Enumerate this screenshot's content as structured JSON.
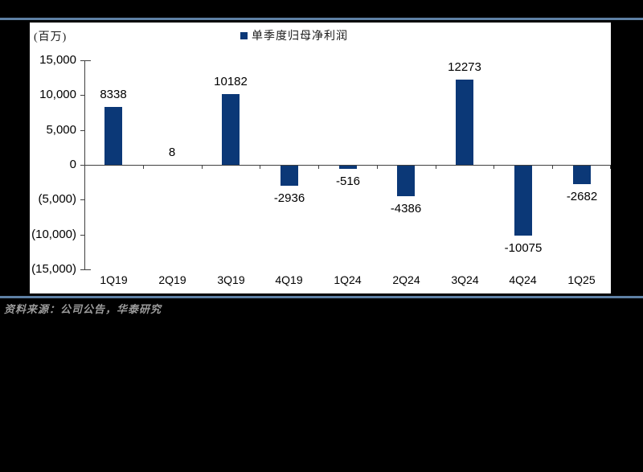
{
  "page": {
    "background": "#000000",
    "separator_color": "#5E80A4",
    "source_note": "资料来源：公司公告，华泰研究",
    "source_color": "#9C9C9C"
  },
  "chart_data": {
    "type": "bar",
    "title_unit": "(百万)",
    "legend": [
      {
        "label": "单季度归母净利润"
      }
    ],
    "legend_position": "top-center",
    "categories": [
      "1Q19",
      "2Q19",
      "3Q19",
      "4Q19",
      "1Q24",
      "2Q24",
      "3Q24",
      "4Q24",
      "1Q25"
    ],
    "series": [
      {
        "name": "单季度归母净利润",
        "values": [
          8338,
          8,
          10182,
          -2936,
          -516,
          -4386,
          12273,
          -10075,
          -2682
        ]
      }
    ],
    "data_labels": [
      "8338",
      "8",
      "10182",
      "-2936",
      "-516",
      "-4386",
      "12273",
      "-10075",
      "-2682"
    ],
    "ylim": [
      -15000,
      15000
    ],
    "y_ticks": [
      15000,
      10000,
      5000,
      0,
      -5000,
      -10000,
      -15000
    ],
    "y_tick_labels": [
      "15,000",
      "10,000",
      "5,000",
      "0",
      "(5,000)",
      "(10,000)",
      "(15,000)"
    ],
    "grid": false,
    "bar_color": "#0B3877",
    "axis_color": "#404040",
    "label_color": "#000000"
  }
}
